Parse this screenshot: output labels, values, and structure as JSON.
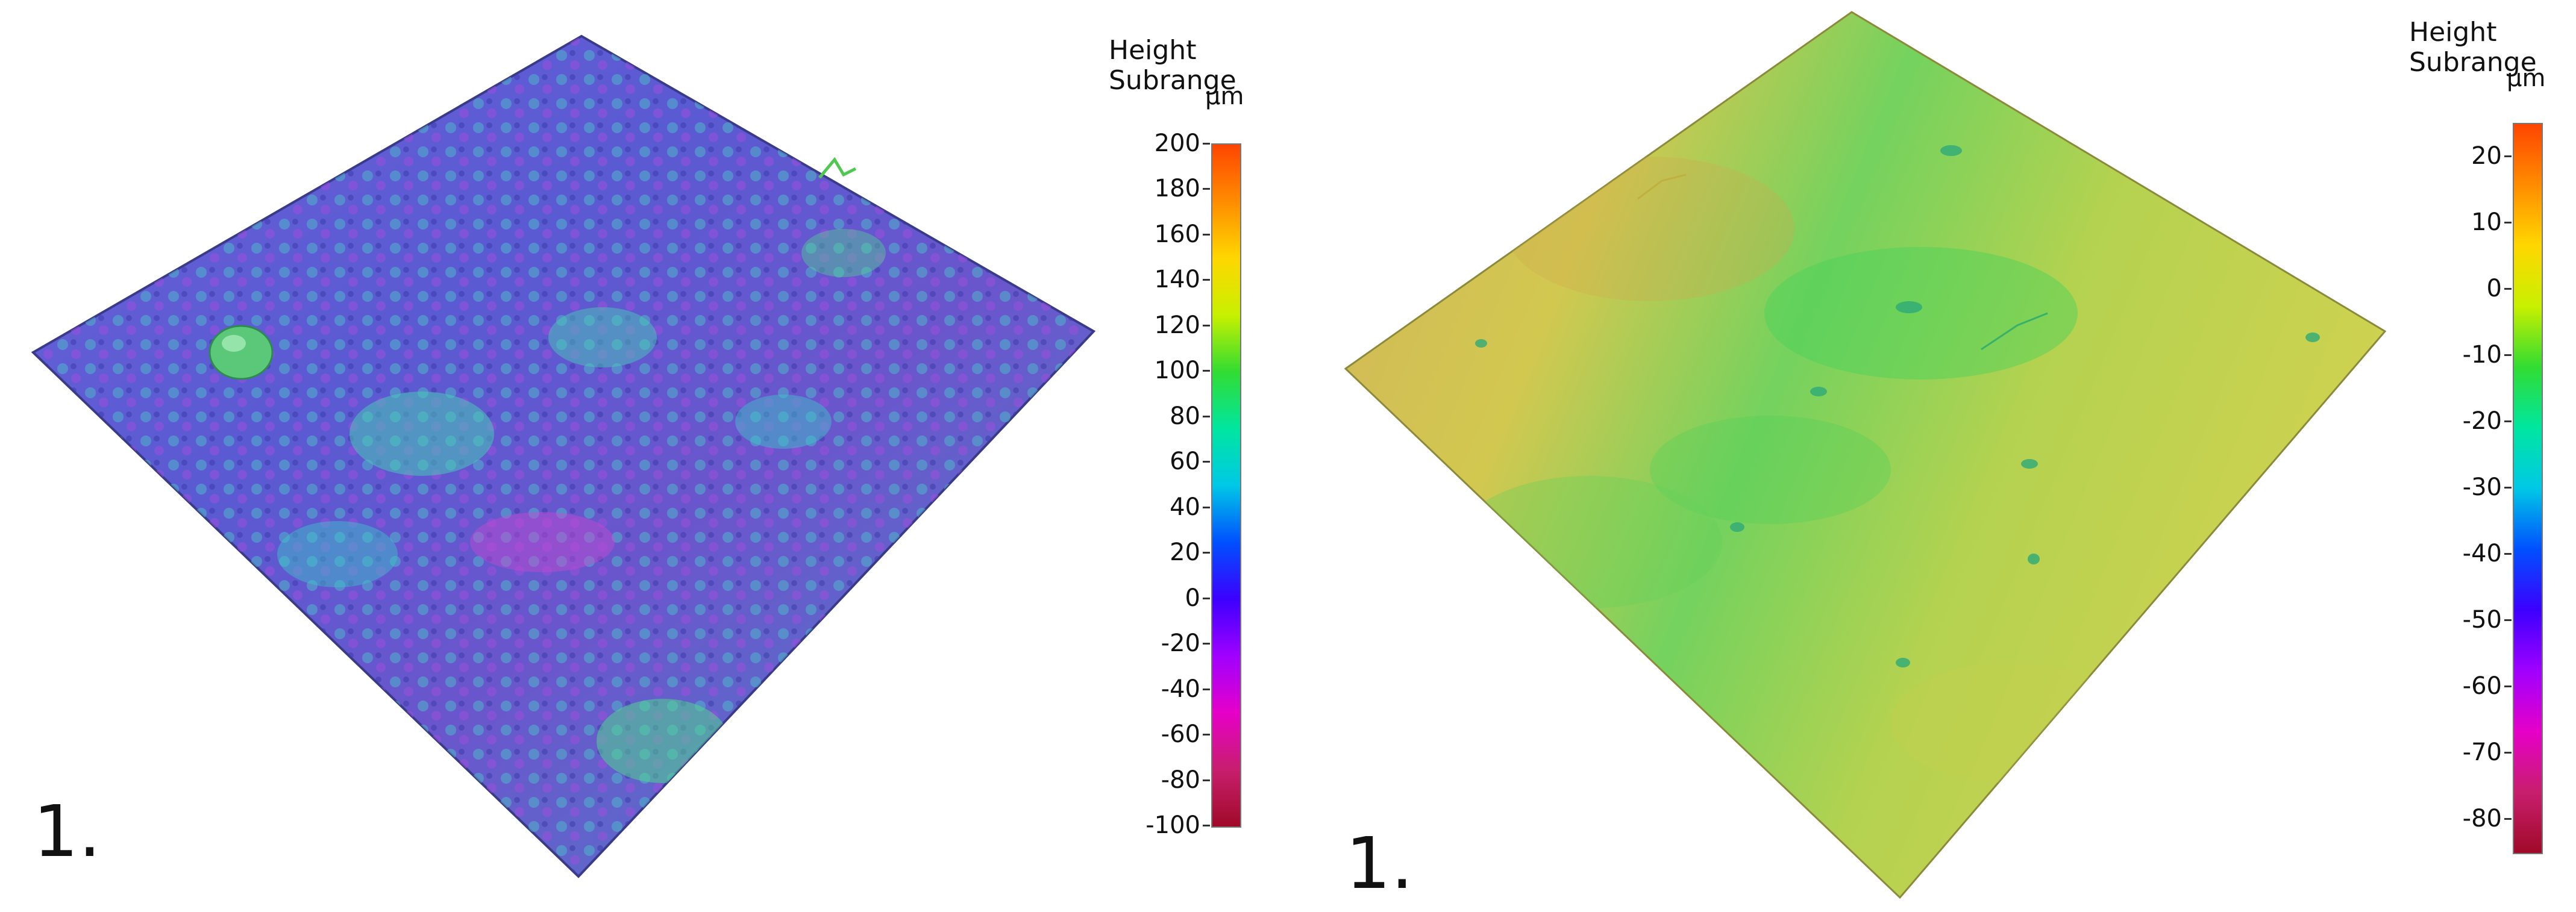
{
  "panels": [
    {
      "label": "1.",
      "legend": {
        "title_line1": "Height",
        "title_line2": "Subrange",
        "unit": "µm",
        "ticks": [
          "200",
          "180",
          "160",
          "140",
          "120",
          "100",
          "80",
          "60",
          "40",
          "20",
          "0",
          "-20",
          "-40",
          "-60",
          "-80",
          "-100"
        ],
        "range": [
          -100,
          200
        ],
        "gradient": [
          "#ff4500",
          "#ff8c00",
          "#ffd700",
          "#c8f000",
          "#32dc32",
          "#00e6a0",
          "#00c8e6",
          "#0050ff",
          "#3c00ff",
          "#a000ff",
          "#e600c8",
          "#c81e6e",
          "#a00a28"
        ]
      },
      "surface": {
        "base_color": "#5a5ad2",
        "accent_colors": [
          "#9646dc",
          "#3cc8c8",
          "#50dc8c"
        ]
      }
    },
    {
      "label": "1.",
      "legend": {
        "title_line1": "Height",
        "title_line2": "Subrange",
        "unit": "µm",
        "ticks": [
          "20",
          "10",
          "0",
          "-10",
          "-20",
          "-30",
          "-40",
          "-50",
          "-60",
          "-70",
          "-80"
        ],
        "range": [
          -85,
          25
        ],
        "gradient": [
          "#ff4500",
          "#ff8c00",
          "#ffd700",
          "#c8f000",
          "#32dc32",
          "#00e6a0",
          "#00c8e6",
          "#0050ff",
          "#3c00ff",
          "#a000ff",
          "#e600c8",
          "#c81e6e",
          "#a00a28"
        ]
      },
      "surface": {
        "base_color": "#d2c850",
        "accent_colors": [
          "#c8a046",
          "#78d25a",
          "#32c878"
        ]
      }
    }
  ]
}
